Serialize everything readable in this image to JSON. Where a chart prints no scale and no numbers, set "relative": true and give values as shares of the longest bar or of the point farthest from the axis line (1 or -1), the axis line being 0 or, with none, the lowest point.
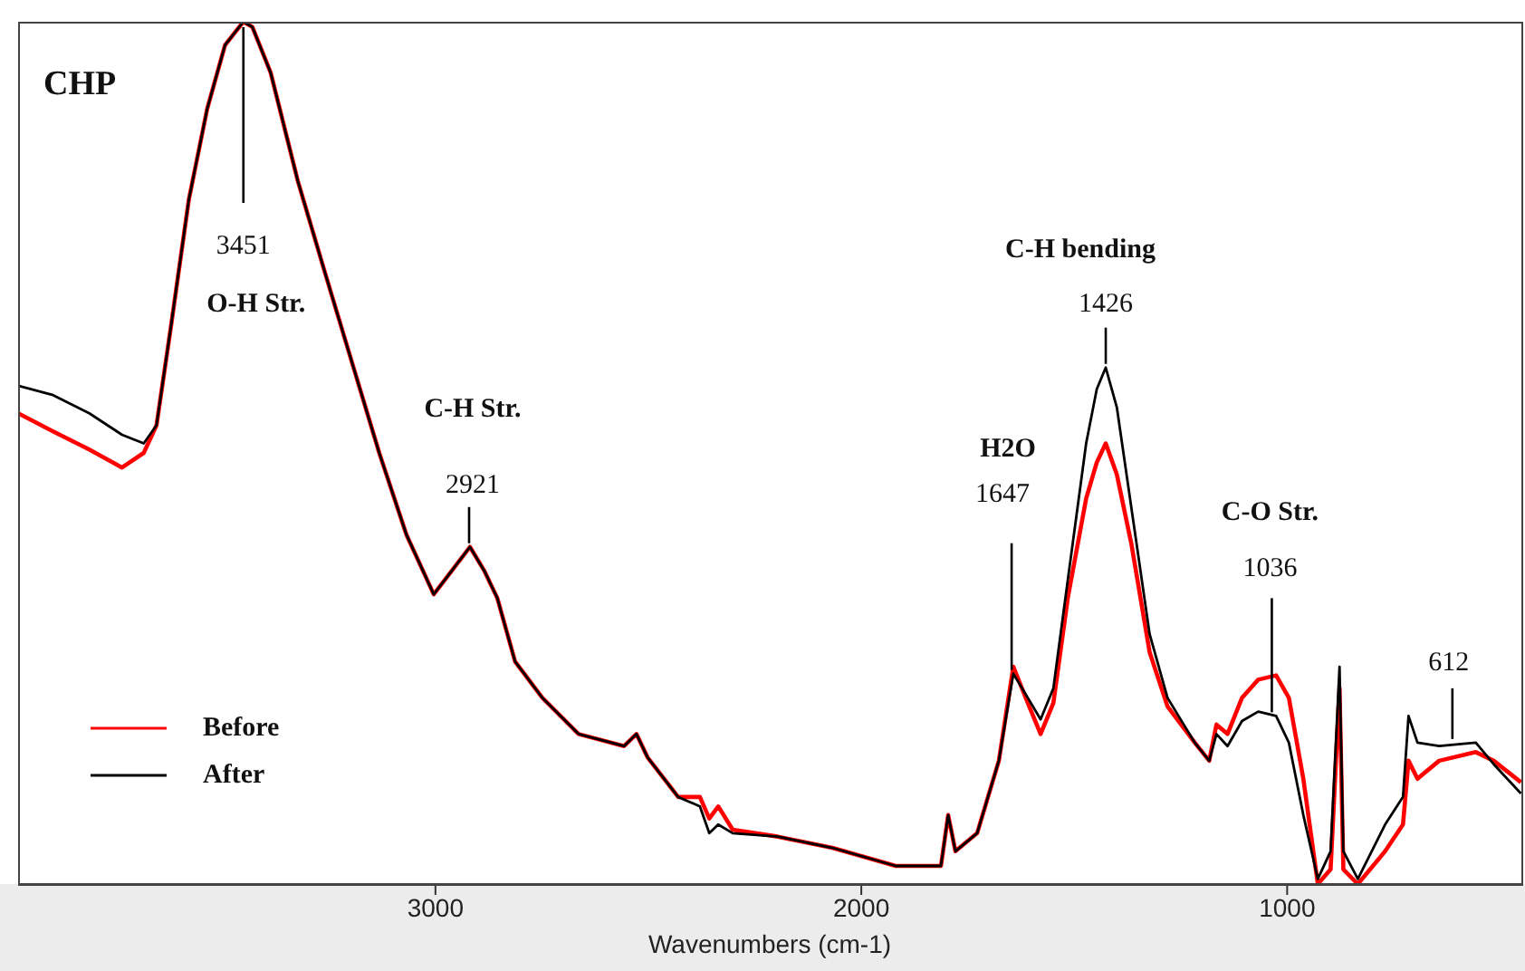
{
  "chart_data": {
    "type": "line",
    "title": "CHP",
    "xlabel": "Wavenumbers (cm-1)",
    "relative": true,
    "xlim": [
      3980,
      450
    ],
    "xticks": [
      3000,
      2000,
      1000
    ],
    "legend": "bottom left",
    "grid": false,
    "marker": "none",
    "line_style": "solid",
    "annotations": [
      {
        "text": "3451",
        "x": 3451,
        "y": 1.0
      },
      "O-H Str.",
      {
        "text": "2921",
        "x": 2921,
        "y": 0.391
      },
      "C-H Str.",
      {
        "text": "1647",
        "x": 1647,
        "y": 0.244
      },
      "H2O",
      {
        "text": "1426",
        "x": 1426,
        "y": 0.599
      },
      "C-H bending",
      {
        "text": "1036",
        "x": 1036,
        "y": 0.195
      },
      "C-O Str.",
      {
        "text": "612",
        "x": 612,
        "y": 0.164
      }
    ],
    "series": [
      {
        "name": "Before",
        "color": "#ff0000",
        "x": [
          3980,
          3898,
          3813,
          3736,
          3685,
          3655,
          3621,
          3579,
          3536,
          3494,
          3451,
          3430,
          3387,
          3323,
          3260,
          3196,
          3132,
          3068,
          3004,
          2962,
          2919,
          2885,
          2855,
          2813,
          2749,
          2664,
          2557,
          2528,
          2502,
          2430,
          2379,
          2357,
          2336,
          2302,
          2196,
          2068,
          1919,
          1813,
          1796,
          1779,
          1728,
          1677,
          1643,
          1609,
          1579,
          1549,
          1515,
          1472,
          1447,
          1426,
          1400,
          1366,
          1323,
          1281,
          1217,
          1183,
          1166,
          1140,
          1106,
          1068,
          1026,
          996,
          962,
          928,
          898,
          877,
          868,
          834,
          770,
          728,
          715,
          694,
          643,
          557,
          515,
          451
        ],
        "values": [
          0.546,
          0.525,
          0.504,
          0.483,
          0.5,
          0.532,
          0.647,
          0.794,
          0.899,
          0.973,
          1.0,
          0.994,
          0.941,
          0.815,
          0.71,
          0.605,
          0.5,
          0.405,
          0.336,
          0.363,
          0.391,
          0.363,
          0.332,
          0.258,
          0.216,
          0.174,
          0.16,
          0.174,
          0.147,
          0.101,
          0.101,
          0.076,
          0.09,
          0.063,
          0.055,
          0.042,
          0.021,
          0.021,
          0.08,
          0.038,
          0.059,
          0.143,
          0.252,
          0.21,
          0.174,
          0.21,
          0.332,
          0.447,
          0.489,
          0.511,
          0.475,
          0.395,
          0.269,
          0.206,
          0.164,
          0.143,
          0.185,
          0.174,
          0.216,
          0.237,
          0.242,
          0.216,
          0.122,
          0.0,
          0.017,
          0.227,
          0.017,
          0.0,
          0.038,
          0.069,
          0.143,
          0.122,
          0.143,
          0.153,
          0.143,
          0.118
        ]
      },
      {
        "name": "After",
        "color": "#000000",
        "x": [
          3980,
          3898,
          3813,
          3736,
          3685,
          3655,
          3621,
          3579,
          3536,
          3494,
          3451,
          3430,
          3387,
          3323,
          3260,
          3196,
          3132,
          3068,
          3004,
          2962,
          2919,
          2885,
          2855,
          2813,
          2749,
          2664,
          2557,
          2528,
          2502,
          2430,
          2379,
          2357,
          2336,
          2302,
          2196,
          2068,
          1919,
          1813,
          1796,
          1779,
          1728,
          1677,
          1643,
          1609,
          1579,
          1549,
          1515,
          1472,
          1447,
          1426,
          1400,
          1366,
          1323,
          1281,
          1217,
          1183,
          1166,
          1140,
          1106,
          1068,
          1026,
          996,
          962,
          928,
          898,
          877,
          868,
          834,
          770,
          728,
          715,
          694,
          643,
          557,
          515,
          451
        ],
        "values": [
          0.578,
          0.567,
          0.546,
          0.521,
          0.511,
          0.532,
          0.647,
          0.794,
          0.899,
          0.973,
          1.0,
          0.994,
          0.941,
          0.815,
          0.71,
          0.605,
          0.5,
          0.405,
          0.336,
          0.363,
          0.391,
          0.363,
          0.332,
          0.258,
          0.216,
          0.174,
          0.16,
          0.174,
          0.147,
          0.101,
          0.09,
          0.059,
          0.069,
          0.059,
          0.055,
          0.042,
          0.021,
          0.021,
          0.08,
          0.038,
          0.059,
          0.143,
          0.244,
          0.216,
          0.191,
          0.227,
          0.353,
          0.511,
          0.574,
          0.599,
          0.553,
          0.437,
          0.29,
          0.216,
          0.164,
          0.143,
          0.174,
          0.16,
          0.189,
          0.2,
          0.195,
          0.164,
          0.08,
          0.006,
          0.038,
          0.252,
          0.038,
          0.006,
          0.069,
          0.101,
          0.195,
          0.164,
          0.16,
          0.164,
          0.139,
          0.105
        ]
      }
    ]
  }
}
